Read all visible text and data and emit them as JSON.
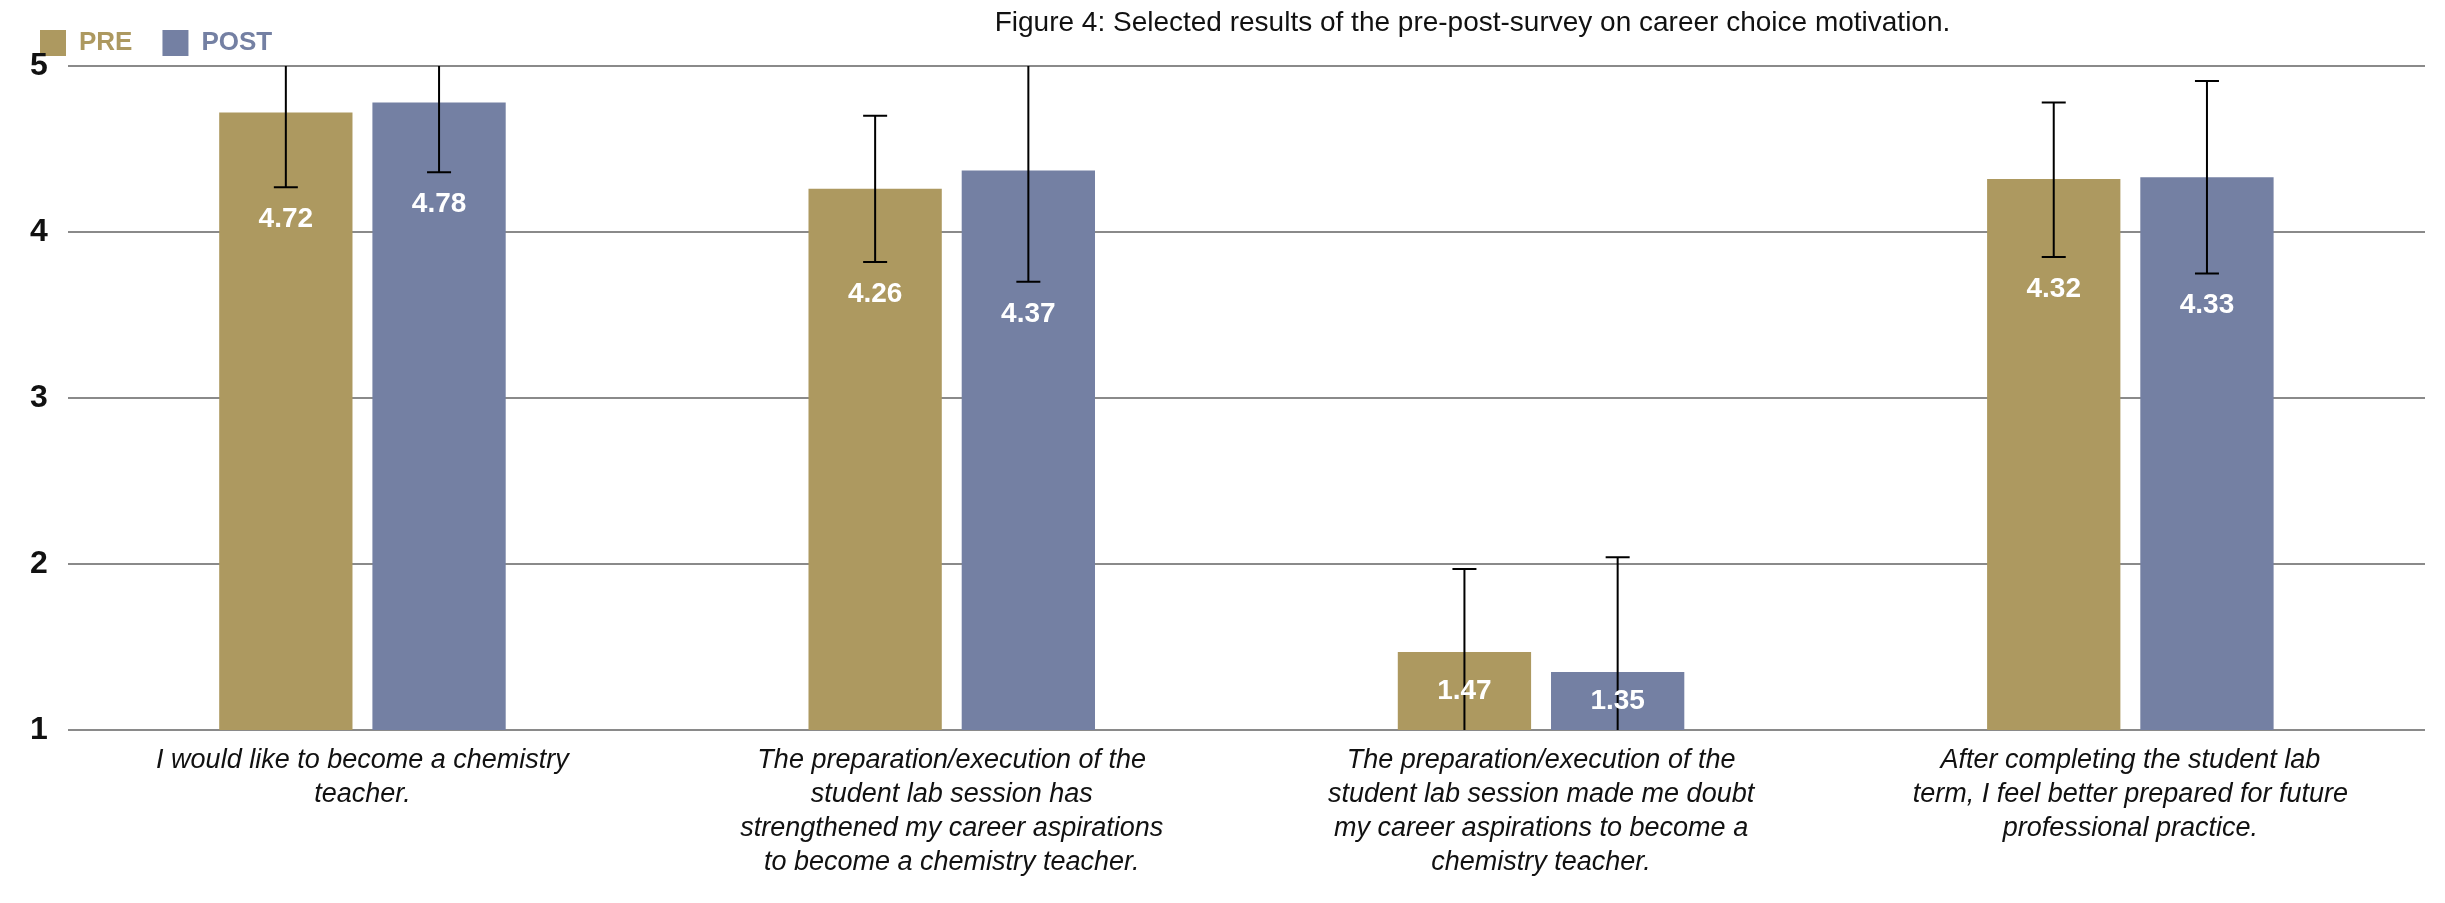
{
  "chart_data": {
    "type": "bar",
    "title": "Figure 4: Selected results of the pre-post-survey on career choice motivation.",
    "categories": [
      "I would like to become a chemistry teacher.",
      "The preparation/execution of the student lab session has strengthened my career aspirations to become a chemistry teacher.",
      "The preparation/execution of the student lab session made me doubt my career aspirations to become a chemistry teacher.",
      "After completing the student lab term, I feel better prepared for future professional practice."
    ],
    "series": [
      {
        "name": "PRE",
        "color": "#ad9960",
        "values": [
          4.72,
          4.26,
          1.47,
          4.32
        ],
        "errors": [
          [
            4.27,
            5
          ],
          [
            3.82,
            4.7
          ],
          [
            1,
            1.97
          ],
          [
            3.85,
            4.78
          ]
        ]
      },
      {
        "name": "POST",
        "color": "#7480a3",
        "values": [
          4.78,
          4.37,
          1.35,
          4.33
        ],
        "errors": [
          [
            4.36,
            5
          ],
          [
            3.7,
            5
          ],
          [
            1,
            2.04
          ],
          [
            3.75,
            4.91
          ]
        ]
      }
    ],
    "ylim": [
      1,
      5
    ],
    "yticks": [
      1,
      2,
      3,
      4,
      5
    ],
    "grid": "y",
    "legend": "top left",
    "data_labels": true
  }
}
